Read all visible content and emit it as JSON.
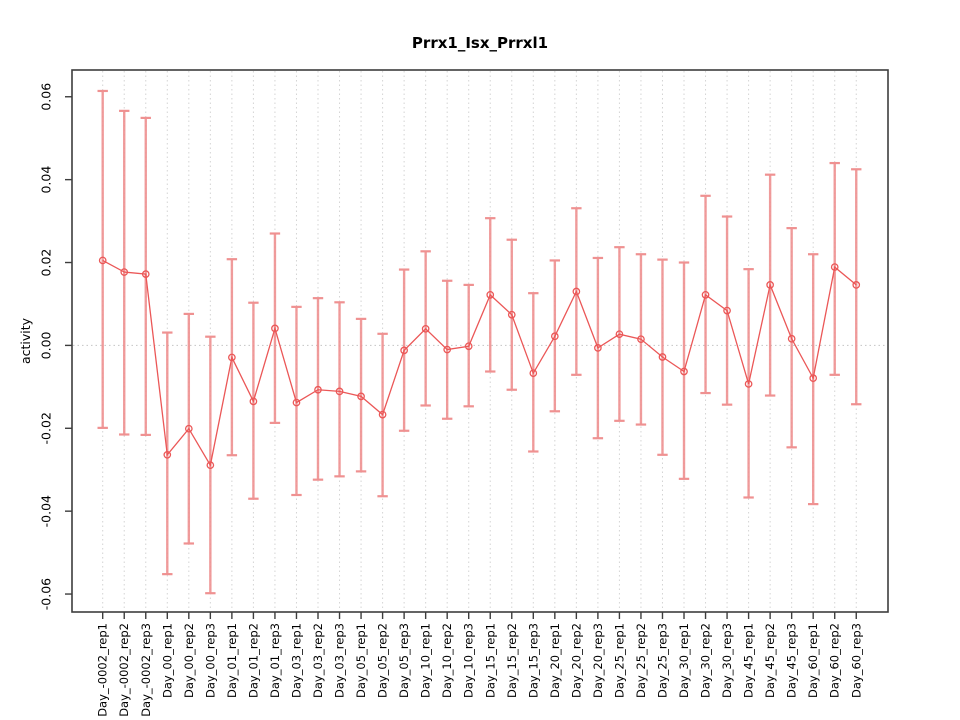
{
  "figure": {
    "title": "Prrx1_Isx_Prrxl1",
    "y_axis_label": "activity"
  },
  "chart_data": {
    "type": "line",
    "subtype": "points-with-error-bars",
    "title": "Prrx1_Isx_Prrxl1",
    "xlabel": "",
    "ylabel": "activity",
    "ylim": [
      -0.0643,
      0.0665
    ],
    "y_ticks": [
      "0.06",
      "0.04",
      "0.02",
      "0.00",
      "-0.02",
      "-0.04",
      "-0.06"
    ],
    "grid": "vertical dotted gridline per category; dotted horizontal line at zero",
    "legend_position": "none",
    "marker": "open-circle",
    "colors": {
      "series_line": "#eb5757",
      "error_bar": "#ef9191",
      "gridline": "#d4d4d4",
      "zero_line": "#c4c4c4",
      "box": "#3d3d3d",
      "text": "#000000",
      "background": "#ffffff"
    },
    "categories": [
      "Day_-0002_rep1",
      "Day_-0002_rep2",
      "Day_-0002_rep3",
      "Day_00_rep1",
      "Day_00_rep2",
      "Day_00_rep3",
      "Day_01_rep1",
      "Day_01_rep2",
      "Day_01_rep3",
      "Day_03_rep1",
      "Day_03_rep2",
      "Day_03_rep3",
      "Day_05_rep1",
      "Day_05_rep2",
      "Day_05_rep3",
      "Day_10_rep1",
      "Day_10_rep2",
      "Day_10_rep3",
      "Day_15_rep1",
      "Day_15_rep2",
      "Day_15_rep3",
      "Day_20_rep1",
      "Day_20_rep2",
      "Day_20_rep3",
      "Day_25_rep1",
      "Day_25_rep2",
      "Day_25_rep3",
      "Day_30_rep1",
      "Day_30_rep2",
      "Day_30_rep3",
      "Day_45_rep1",
      "Day_45_rep2",
      "Day_45_rep3",
      "Day_60_rep1",
      "Day_60_rep2",
      "Day_60_rep3"
    ],
    "series": [
      {
        "name": "activity",
        "values": [
          0.0205,
          0.0177,
          0.0172,
          -0.0264,
          -0.0201,
          -0.0289,
          -0.0029,
          -0.0135,
          0.0041,
          -0.0138,
          -0.0107,
          -0.0111,
          -0.0123,
          -0.0167,
          -0.0012,
          0.004,
          -0.001,
          -0.0002,
          0.0122,
          0.0074,
          -0.0067,
          0.0022,
          0.013,
          -0.0006,
          0.0027,
          0.0015,
          -0.0028,
          -0.0063,
          0.0122,
          0.0084,
          -0.0093,
          0.0146,
          0.0016,
          -0.0079,
          0.0189,
          0.0146
        ],
        "error_high": [
          0.0614,
          0.0566,
          0.0549,
          0.0031,
          0.0076,
          0.0021,
          0.0208,
          0.0103,
          0.027,
          0.0093,
          0.0114,
          0.0104,
          0.0064,
          0.0028,
          0.0183,
          0.0227,
          0.0156,
          0.0146,
          0.0307,
          0.0255,
          0.0126,
          0.0205,
          0.0331,
          0.0211,
          0.0237,
          0.022,
          0.0207,
          0.02,
          0.0361,
          0.0311,
          0.0184,
          0.0412,
          0.0283,
          0.022,
          0.044,
          0.0425
        ],
        "error_low": [
          -0.0199,
          -0.0215,
          -0.0216,
          -0.0552,
          -0.0478,
          -0.0598,
          -0.0265,
          -0.037,
          -0.0187,
          -0.0361,
          -0.0324,
          -0.0316,
          -0.0304,
          -0.0364,
          -0.0206,
          -0.0145,
          -0.0177,
          -0.0147,
          -0.0063,
          -0.0107,
          -0.0256,
          -0.0159,
          -0.0071,
          -0.0224,
          -0.0182,
          -0.0191,
          -0.0264,
          -0.0322,
          -0.0115,
          -0.0143,
          -0.0367,
          -0.0121,
          -0.0246,
          -0.0383,
          -0.0071,
          -0.0142
        ]
      }
    ]
  }
}
